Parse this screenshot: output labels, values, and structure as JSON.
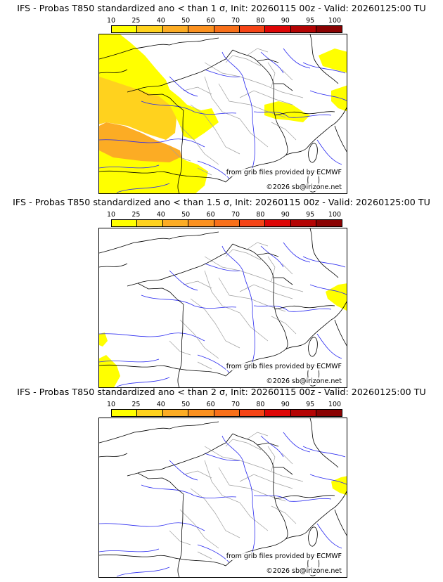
{
  "colors": {
    "scale": [
      "#ffff00",
      "#ffd21e",
      "#fcac24",
      "#fb9120",
      "#f8701a",
      "#f54416",
      "#dd0606",
      "#b40404",
      "#8a0202",
      "#5a0101"
    ],
    "land_yellow": "#ffff00",
    "land_light_orange": "#ffd21e",
    "land_orange": "#fcac24",
    "border": "#000000",
    "river": "#2a2af0",
    "region": "#a0a0a0"
  },
  "colorbar_ticks": [
    "10",
    "25",
    "40",
    "50",
    "60",
    "70",
    "80",
    "90",
    "95",
    "100"
  ],
  "credits": {
    "source": "from grib files provided by ECMWF",
    "copyright": "©2026 sb@irizone.net"
  },
  "panels": [
    {
      "title": "IFS - Probas T850  standardized ano < than 1 σ, Init: 20260115 00z - Valid: 20260125:00 TU",
      "probability_areas": [
        {
          "region": "west Atlantic / Bay of Biscay",
          "range": "10-40",
          "levels": [
            "10",
            "25",
            "40"
          ]
        },
        {
          "region": "Brittany / western France coast",
          "range": "10-25",
          "levels": [
            "10",
            "25"
          ]
        },
        {
          "region": "northern Italy / Alps",
          "range": "10",
          "levels": [
            "10"
          ]
        },
        {
          "region": "Germany / Czechia north-east",
          "range": "10",
          "levels": [
            "10"
          ]
        },
        {
          "region": "Adriatic / Balkans east edge",
          "range": "10-25",
          "levels": [
            "10",
            "25"
          ]
        }
      ]
    },
    {
      "title": "IFS - Probas T850  standardized ano < than 1.5 σ, Init: 20260115 00z - Valid: 20260125:00 TU",
      "probability_areas": [
        {
          "region": "south-west Atlantic corner",
          "range": "10",
          "levels": [
            "10"
          ]
        },
        {
          "region": "Adriatic / Balkans east edge",
          "range": "10",
          "levels": [
            "10"
          ]
        }
      ]
    },
    {
      "title": "IFS - Probas T850  standardized ano < than 2 σ, Init: 20260115 00z - Valid: 20260125:00 TU",
      "probability_areas": [
        {
          "region": "Adriatic / Balkans east edge",
          "range": "10",
          "levels": [
            "10"
          ]
        }
      ]
    }
  ]
}
